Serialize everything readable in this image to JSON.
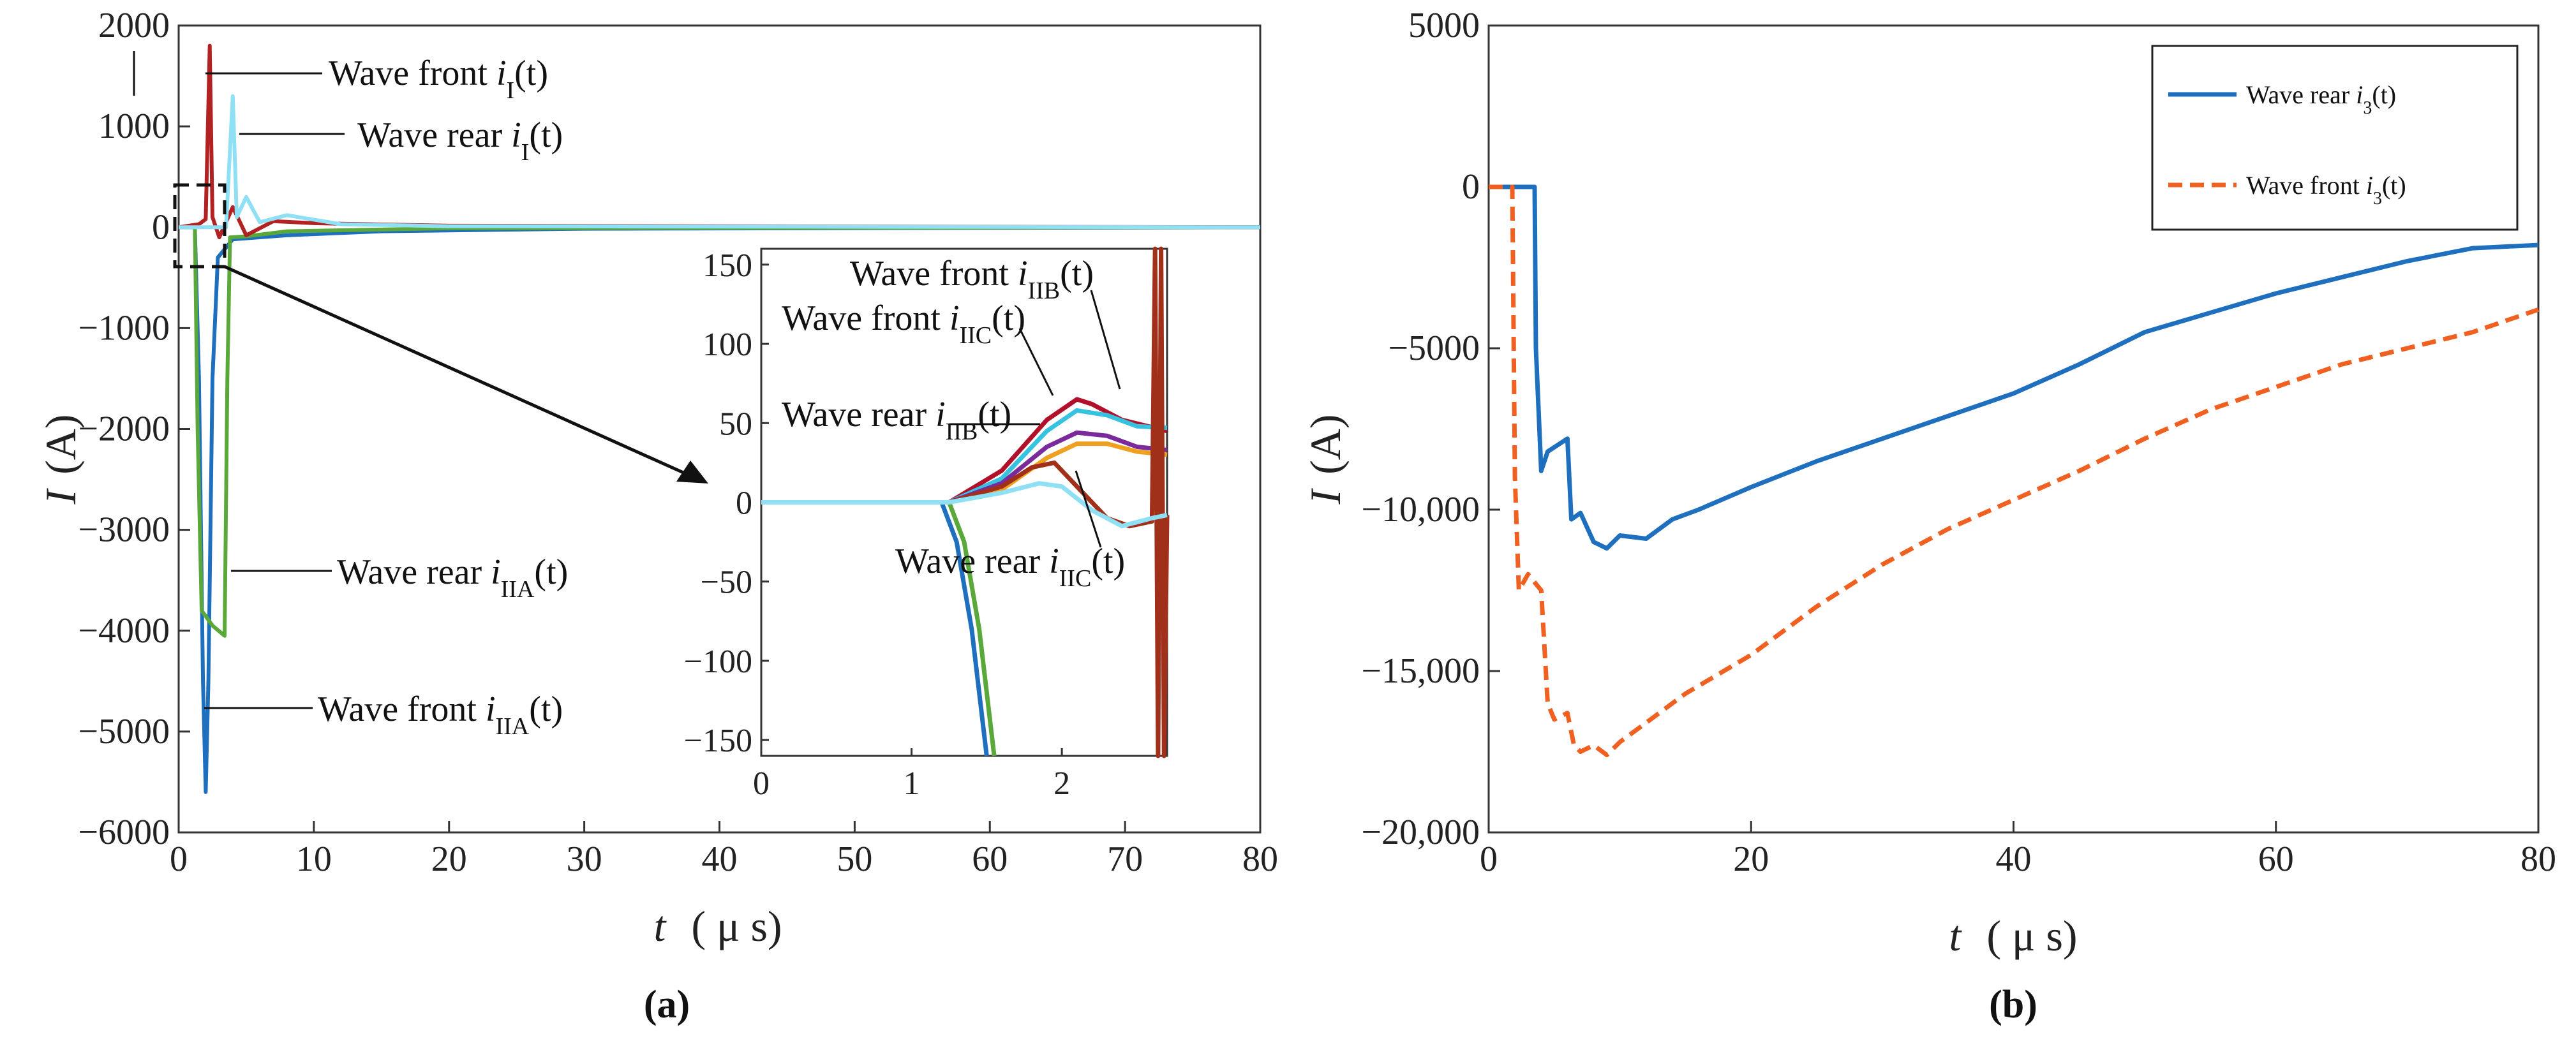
{
  "chart_data": [
    {
      "type": "line",
      "panel_label": "(a)",
      "ylabel": "I (A)",
      "ylabel_var": "I",
      "ylabel_unit": "(A)",
      "xlabel_var": "t",
      "xlabel_unit": "( μ s)",
      "xlim": [
        0,
        80
      ],
      "ylim": [
        -6000,
        2000
      ],
      "xticks": [
        "0",
        "10",
        "20",
        "30",
        "40",
        "50",
        "60",
        "70",
        "80"
      ],
      "yticks": [
        "2000",
        "1000",
        "0",
        "−1000",
        "−2000",
        "−3000",
        "−4000",
        "−5000",
        "−6000"
      ],
      "colors": {
        "blue": "#1f6fbf",
        "green": "#5aa83a",
        "red": "#b22222",
        "dark_red": "#a0301a",
        "cyan": "#8fe0f5"
      },
      "series": [
        {
          "color": "#1f6fbf",
          "points": [
            [
              0,
              0
            ],
            [
              1.2,
              0
            ],
            [
              1.5,
              -1500
            ],
            [
              1.8,
              -4500
            ],
            [
              2.0,
              -5600
            ],
            [
              2.2,
              -4500
            ],
            [
              2.5,
              -1500
            ],
            [
              2.9,
              -300
            ],
            [
              4,
              -120
            ],
            [
              8,
              -80
            ],
            [
              15,
              -40
            ],
            [
              30,
              -15
            ],
            [
              80,
              0
            ]
          ]
        },
        {
          "color": "#5aa83a",
          "points": [
            [
              0,
              0
            ],
            [
              1.2,
              0
            ],
            [
              1.4,
              -2000
            ],
            [
              1.7,
              -3800
            ],
            [
              2.5,
              -3950
            ],
            [
              3.4,
              -4050
            ],
            [
              3.6,
              -1500
            ],
            [
              3.8,
              -100
            ],
            [
              5,
              -90
            ],
            [
              8,
              -40
            ],
            [
              20,
              -10
            ],
            [
              80,
              0
            ]
          ]
        },
        {
          "color": "#b22222",
          "points": [
            [
              0,
              0
            ],
            [
              1.5,
              30
            ],
            [
              2.0,
              80
            ],
            [
              2.3,
              1800
            ],
            [
              2.5,
              100
            ],
            [
              3,
              -100
            ],
            [
              4,
              200
            ],
            [
              5,
              -80
            ],
            [
              7,
              60
            ],
            [
              10,
              40
            ],
            [
              20,
              15
            ],
            [
              80,
              0
            ]
          ]
        },
        {
          "color": "#8fe0f5",
          "points": [
            [
              0,
              0
            ],
            [
              3.5,
              0
            ],
            [
              4.0,
              1300
            ],
            [
              4.3,
              100
            ],
            [
              5,
              300
            ],
            [
              6,
              50
            ],
            [
              8,
              120
            ],
            [
              12,
              30
            ],
            [
              20,
              10
            ],
            [
              80,
              0
            ]
          ]
        }
      ],
      "annotations": [
        {
          "text": "Wave front ",
          "sym": "i",
          "sub": "I",
          "arg": "(t)"
        },
        {
          "text": "Wave rear ",
          "sym": "i",
          "sub": "I",
          "arg": "(t)"
        },
        {
          "text": "Wave rear ",
          "sym": "i",
          "sub": "IIA",
          "arg": "(t)"
        },
        {
          "text": "Wave front ",
          "sym": "i",
          "sub": "IIA",
          "arg": "(t)"
        }
      ],
      "inset": {
        "xlim": [
          0,
          2.7
        ],
        "ylim": [
          -160,
          160
        ],
        "xticks": [
          "0",
          "1",
          "2"
        ],
        "yticks": [
          "150",
          "100",
          "50",
          "0",
          "−50",
          "−100",
          "−150"
        ],
        "series": [
          {
            "color": "#1f6fbf",
            "points": [
              [
                0,
                0
              ],
              [
                1.2,
                0
              ],
              [
                1.3,
                -25
              ],
              [
                1.4,
                -80
              ],
              [
                1.5,
                -160
              ]
            ]
          },
          {
            "color": "#5aa83a",
            "points": [
              [
                0,
                0
              ],
              [
                1.25,
                0
              ],
              [
                1.35,
                -25
              ],
              [
                1.45,
                -80
              ],
              [
                1.55,
                -160
              ]
            ]
          },
          {
            "color": "#b0102a",
            "points": [
              [
                0,
                0
              ],
              [
                1.25,
                0
              ],
              [
                1.6,
                20
              ],
              [
                1.9,
                52
              ],
              [
                2.1,
                65
              ],
              [
                2.2,
                62
              ],
              [
                2.4,
                52
              ],
              [
                2.7,
                45
              ]
            ]
          },
          {
            "color": "#37c3e0",
            "points": [
              [
                0,
                0
              ],
              [
                1.25,
                0
              ],
              [
                1.6,
                15
              ],
              [
                1.9,
                45
              ],
              [
                2.1,
                58
              ],
              [
                2.3,
                55
              ],
              [
                2.5,
                48
              ],
              [
                2.7,
                47
              ]
            ]
          },
          {
            "color": "#7a2a9a",
            "points": [
              [
                0,
                0
              ],
              [
                1.25,
                0
              ],
              [
                1.6,
                12
              ],
              [
                1.9,
                35
              ],
              [
                2.1,
                44
              ],
              [
                2.3,
                42
              ],
              [
                2.5,
                35
              ],
              [
                2.7,
                33
              ]
            ]
          },
          {
            "color": "#f0a020",
            "points": [
              [
                0,
                0
              ],
              [
                1.25,
                0
              ],
              [
                1.6,
                8
              ],
              [
                1.9,
                28
              ],
              [
                2.1,
                37
              ],
              [
                2.3,
                37
              ],
              [
                2.5,
                32
              ],
              [
                2.7,
                30
              ]
            ]
          },
          {
            "color": "#a0301a",
            "points": [
              [
                0,
                0
              ],
              [
                1.25,
                0
              ],
              [
                1.6,
                10
              ],
              [
                1.8,
                22
              ],
              [
                1.95,
                25
              ],
              [
                2.1,
                10
              ],
              [
                2.3,
                -10
              ],
              [
                2.45,
                -15
              ],
              [
                2.6,
                -12
              ],
              [
                2.62,
                160
              ],
              [
                2.64,
                -160
              ],
              [
                2.66,
                160
              ],
              [
                2.68,
                -160
              ],
              [
                2.7,
                -8
              ]
            ]
          },
          {
            "color": "#8fe0f5",
            "points": [
              [
                0,
                0
              ],
              [
                1.25,
                0
              ],
              [
                1.6,
                6
              ],
              [
                1.85,
                12
              ],
              [
                2.0,
                10
              ],
              [
                2.2,
                -5
              ],
              [
                2.4,
                -15
              ],
              [
                2.6,
                -10
              ],
              [
                2.7,
                -8
              ]
            ]
          }
        ],
        "annotations": [
          {
            "text": "Wave front ",
            "sym": "i",
            "sub": "IIB",
            "arg": "(t)"
          },
          {
            "text": "Wave front ",
            "sym": "i",
            "sub": "IIC",
            "arg": "(t)"
          },
          {
            "text": "Wave rear ",
            "sym": "i",
            "sub": "IIB",
            "arg": "(t)"
          },
          {
            "text": "Wave rear ",
            "sym": "i",
            "sub": "IIC",
            "arg": "(t)"
          }
        ]
      }
    },
    {
      "type": "line",
      "panel_label": "(b)",
      "ylabel": "I (A)",
      "ylabel_var": "I",
      "ylabel_unit": "(A)",
      "xlabel_var": "t",
      "xlabel_unit": "( μ s)",
      "xlim": [
        0,
        80
      ],
      "ylim": [
        -20000,
        5000
      ],
      "xticks": [
        "0",
        "20",
        "40",
        "60",
        "80"
      ],
      "yticks": [
        "5000",
        "0",
        "−5000",
        "−10,000",
        "−15,000",
        "−20,000"
      ],
      "legend_position": "top-right",
      "series": [
        {
          "name_text": "Wave rear ",
          "name_sym": "i",
          "name_sub": "3",
          "name_arg": "(t)",
          "color": "#1f6fbf",
          "dash": "solid",
          "points": [
            [
              0,
              0
            ],
            [
              3.5,
              0
            ],
            [
              3.6,
              -5000
            ],
            [
              4,
              -8800
            ],
            [
              4.5,
              -8200
            ],
            [
              6,
              -7800
            ],
            [
              6.3,
              -10300
            ],
            [
              7,
              -10100
            ],
            [
              8,
              -11000
            ],
            [
              9,
              -11200
            ],
            [
              10,
              -10800
            ],
            [
              12,
              -10900
            ],
            [
              14,
              -10300
            ],
            [
              16,
              -10000
            ],
            [
              20,
              -9300
            ],
            [
              25,
              -8500
            ],
            [
              30,
              -7800
            ],
            [
              35,
              -7100
            ],
            [
              40,
              -6400
            ],
            [
              45,
              -5500
            ],
            [
              50,
              -4500
            ],
            [
              55,
              -3900
            ],
            [
              60,
              -3300
            ],
            [
              65,
              -2800
            ],
            [
              70,
              -2300
            ],
            [
              75,
              -1900
            ],
            [
              80,
              -1800
            ]
          ]
        },
        {
          "name_text": "Wave front ",
          "name_sym": "i",
          "name_sub": "3",
          "name_arg": "(t)",
          "color": "#f06020",
          "dash": "dashed",
          "points": [
            [
              0,
              0
            ],
            [
              1.8,
              0
            ],
            [
              2,
              -9000
            ],
            [
              2.3,
              -12500
            ],
            [
              3,
              -12000
            ],
            [
              4,
              -12500
            ],
            [
              4.5,
              -16000
            ],
            [
              5,
              -16500
            ],
            [
              6,
              -16300
            ],
            [
              6.5,
              -17300
            ],
            [
              7,
              -17500
            ],
            [
              8,
              -17300
            ],
            [
              9,
              -17600
            ],
            [
              10,
              -17200
            ],
            [
              12,
              -16600
            ],
            [
              15,
              -15700
            ],
            [
              20,
              -14500
            ],
            [
              25,
              -13000
            ],
            [
              30,
              -11700
            ],
            [
              35,
              -10600
            ],
            [
              40,
              -9700
            ],
            [
              45,
              -8800
            ],
            [
              50,
              -7800
            ],
            [
              55,
              -6900
            ],
            [
              60,
              -6200
            ],
            [
              65,
              -5500
            ],
            [
              70,
              -5000
            ],
            [
              75,
              -4500
            ],
            [
              80,
              -3800
            ]
          ]
        }
      ]
    }
  ]
}
